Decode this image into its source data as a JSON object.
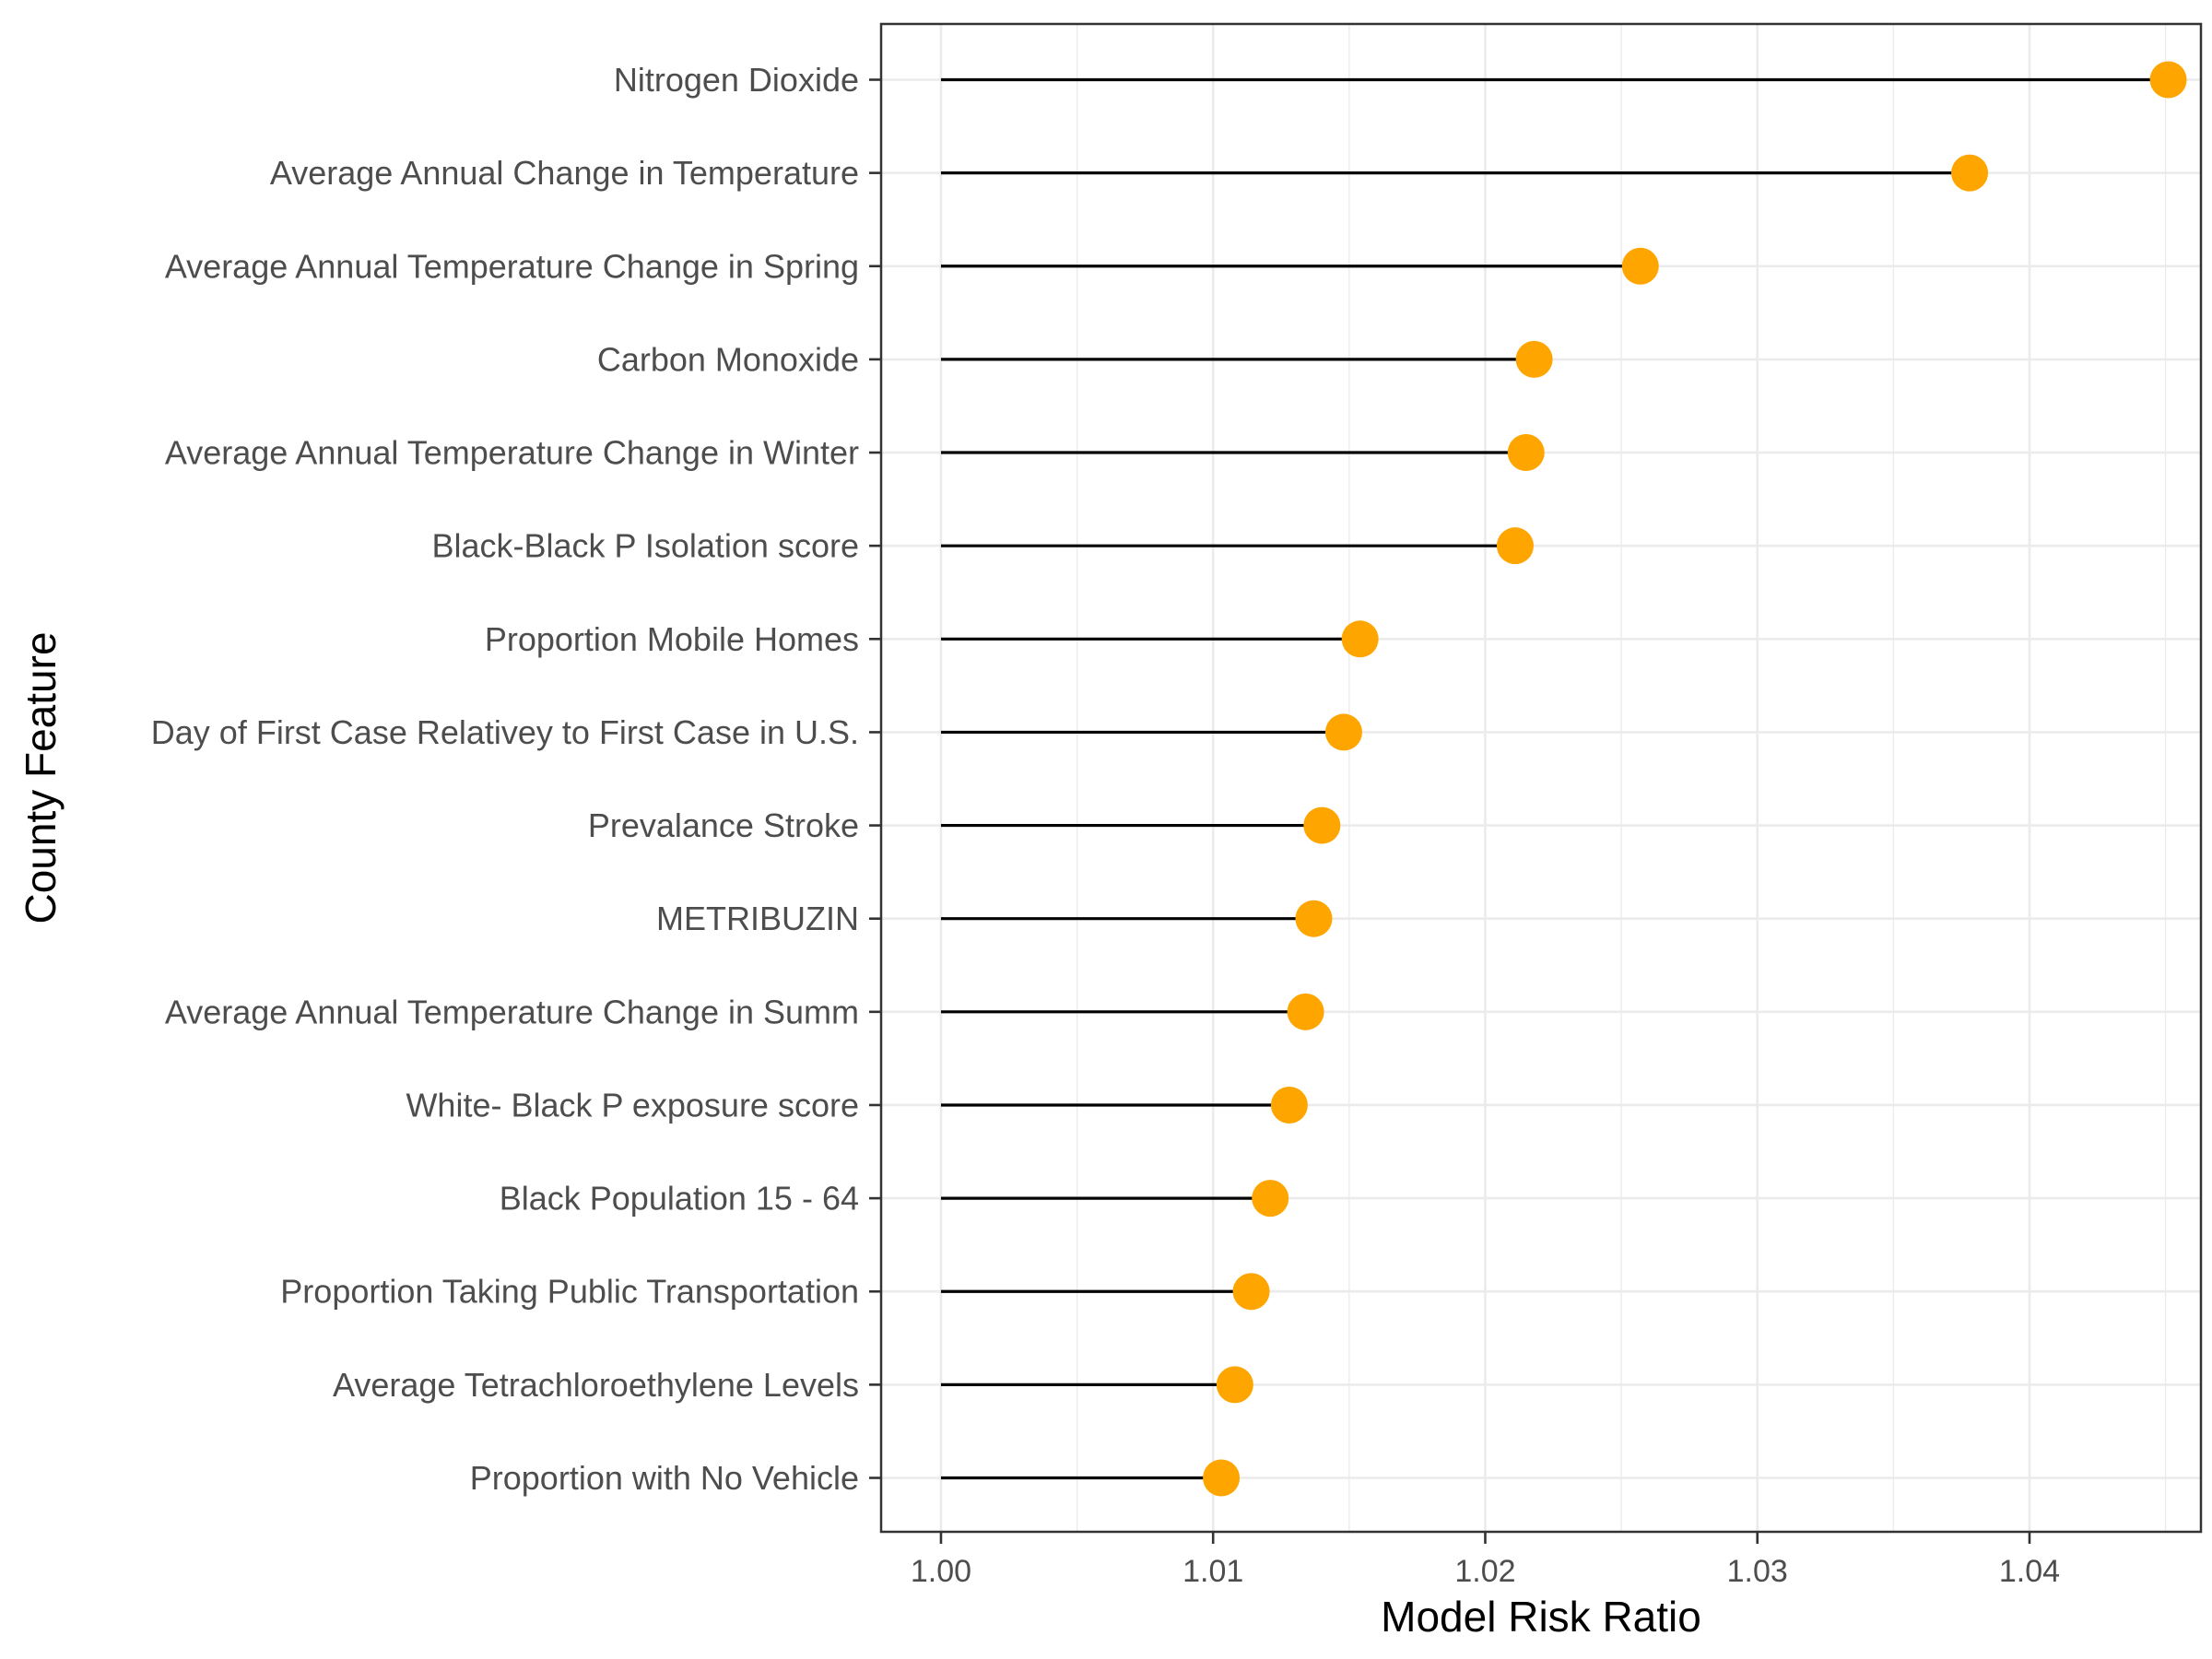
{
  "chart_data": {
    "type": "lollipop",
    "xlabel": "Model Risk Ratio",
    "ylabel": "County Feature",
    "xlim": [
      0.9978,
      1.0463
    ],
    "x_ticks": [
      1.0,
      1.01,
      1.02,
      1.03,
      1.04
    ],
    "x_tick_labels": [
      "1.00",
      "1.01",
      "1.02",
      "1.03",
      "1.04"
    ],
    "baseline": 1.0,
    "grid": true,
    "theme": "bw",
    "colors": {
      "point": "#FFA500",
      "segment": "#000000",
      "grid": "#EBEBEB",
      "panel_border": "#333333",
      "tick_text": "#4D4D4D"
    },
    "categories": [
      "Nitrogen Dioxide",
      "Average Annual Change in Temperature",
      "Average Annual Temperature Change in Spring",
      "Carbon Monoxide",
      "Average Annual Temperature Change in Winter",
      "Black-Black P Isolation score",
      "Proportion Mobile Homes",
      "Day of First Case Relativey to First Case in U.S.",
      "Prevalance Stroke",
      "METRIBUZIN",
      "Average Annual Temperature Change in Summ",
      "White- Black P exposure score",
      "Black Population 15 - 64",
      "Proportion Taking Public Transportation",
      "Average Tetrachloroethylene Levels",
      "Proportion with No Vehicle"
    ],
    "values": [
      1.0451,
      1.0378,
      1.0257,
      1.0218,
      1.0215,
      1.0211,
      1.0154,
      1.0148,
      1.014,
      1.0137,
      1.0134,
      1.0128,
      1.0121,
      1.0114,
      1.0108,
      1.0103
    ]
  }
}
